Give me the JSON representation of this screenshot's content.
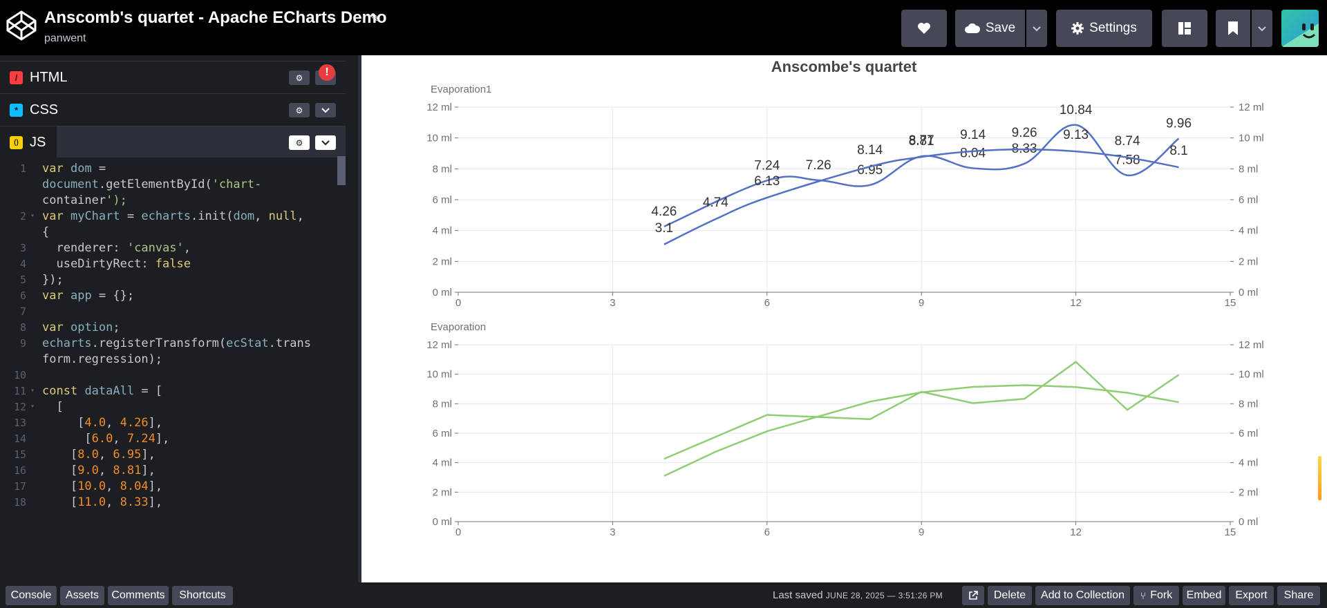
{
  "header": {
    "title": "Anscomb's quartet - Apache ECharts Demo",
    "author": "panwent",
    "save_label": "Save",
    "settings_label": "Settings"
  },
  "editor": {
    "panes": [
      {
        "label": "HTML",
        "icon_char": "/",
        "color": "#ff3c41"
      },
      {
        "label": "CSS",
        "icon_char": "*",
        "color": "#0ebeff"
      },
      {
        "label": "JS",
        "icon_char": "()",
        "color": "#fcd000"
      }
    ],
    "error_badge": "!",
    "code_lines": [
      {
        "num": "1",
        "fold": false,
        "text": "var dom ="
      },
      {
        "num": "",
        "fold": false,
        "text": "document.getElementById('chart-"
      },
      {
        "num": "",
        "fold": false,
        "text": "container');"
      },
      {
        "num": "2",
        "fold": true,
        "text": "var myChart = echarts.init(dom, null,"
      },
      {
        "num": "",
        "fold": false,
        "text": "{"
      },
      {
        "num": "3",
        "fold": false,
        "text": "  renderer: 'canvas',"
      },
      {
        "num": "4",
        "fold": false,
        "text": "  useDirtyRect: false"
      },
      {
        "num": "5",
        "fold": false,
        "text": "});"
      },
      {
        "num": "6",
        "fold": false,
        "text": "var app = {};"
      },
      {
        "num": "7",
        "fold": false,
        "text": ""
      },
      {
        "num": "8",
        "fold": false,
        "text": "var option;"
      },
      {
        "num": "9",
        "fold": false,
        "text": "echarts.registerTransform(ecStat.trans"
      },
      {
        "num": "",
        "fold": false,
        "text": "form.regression);"
      },
      {
        "num": "10",
        "fold": false,
        "text": ""
      },
      {
        "num": "11",
        "fold": true,
        "text": "const dataAll = ["
      },
      {
        "num": "12",
        "fold": true,
        "text": "  ["
      },
      {
        "num": "13",
        "fold": false,
        "text": "     [4.0, 4.26],"
      },
      {
        "num": "14",
        "fold": false,
        "text": "      [6.0, 7.24],"
      },
      {
        "num": "15",
        "fold": false,
        "text": "    [8.0, 6.95],"
      },
      {
        "num": "16",
        "fold": false,
        "text": "    [9.0, 8.81],"
      },
      {
        "num": "17",
        "fold": false,
        "text": "    [10.0, 8.04],"
      },
      {
        "num": "18",
        "fold": false,
        "text": "    [11.0, 8.33],"
      }
    ]
  },
  "footer": {
    "left_buttons": [
      "Console",
      "Assets",
      "Comments",
      "Shortcuts"
    ],
    "last_saved_prefix": "Last saved",
    "last_saved_value": "JUNE 28, 2025 — 3:51:26 PM",
    "right_buttons": [
      "Delete",
      "Add to Collection",
      "Fork",
      "Embed",
      "Export",
      "Share"
    ]
  },
  "chart_data": [
    {
      "type": "line",
      "title": "Anscombe's quartet",
      "y_name": "Evaporation1",
      "xlim": [
        0,
        15
      ],
      "x_ticks": [
        0,
        3,
        6,
        9,
        12,
        15
      ],
      "ylim": [
        0,
        12
      ],
      "y_ticks": [
        0,
        2,
        4,
        6,
        8,
        10,
        12
      ],
      "y_unit": "ml",
      "smooth": true,
      "color": "#5470c6",
      "show_labels": true,
      "series": [
        {
          "points": [
            [
              4,
              4.26
            ],
            [
              6,
              7.24
            ],
            [
              7,
              7.26
            ],
            [
              8,
              6.95
            ],
            [
              9,
              8.81
            ],
            [
              10,
              8.04
            ],
            [
              11,
              8.33
            ],
            [
              12,
              10.84
            ],
            [
              13,
              7.58
            ],
            [
              14,
              9.96
            ]
          ],
          "labels": [
            "4.26",
            "7.24",
            "7.26",
            "6.95",
            "8.81",
            "8.04",
            "8.33",
            "10.84",
            "7.58",
            "9.96"
          ]
        },
        {
          "points": [
            [
              4,
              3.1
            ],
            [
              5,
              4.74
            ],
            [
              6,
              6.13
            ],
            [
              8,
              8.14
            ],
            [
              9,
              8.77
            ],
            [
              10,
              9.14
            ],
            [
              11,
              9.26
            ],
            [
              12,
              9.13
            ],
            [
              13,
              8.74
            ],
            [
              14,
              8.1
            ]
          ],
          "labels": [
            "3.1",
            "4.74",
            "6.13",
            "8.14",
            "8.77",
            "9.14",
            "9.26",
            "9.13",
            "8.74",
            "8.1"
          ]
        }
      ]
    },
    {
      "type": "line",
      "y_name": "Evaporation",
      "xlim": [
        0,
        15
      ],
      "x_ticks": [
        0,
        3,
        6,
        9,
        12,
        15
      ],
      "ylim": [
        0,
        12
      ],
      "y_ticks": [
        0,
        2,
        4,
        6,
        8,
        10,
        12
      ],
      "y_unit": "ml",
      "smooth": false,
      "color": "#91cc75",
      "show_labels": false,
      "series": [
        {
          "points": [
            [
              4,
              4.26
            ],
            [
              6,
              7.24
            ],
            [
              8,
              6.95
            ],
            [
              9,
              8.81
            ],
            [
              10,
              8.04
            ],
            [
              11,
              8.33
            ],
            [
              12,
              10.84
            ],
            [
              13,
              7.58
            ],
            [
              14,
              9.96
            ]
          ]
        },
        {
          "points": [
            [
              4,
              3.1
            ],
            [
              5,
              4.74
            ],
            [
              6,
              6.13
            ],
            [
              8,
              8.14
            ],
            [
              9,
              8.77
            ],
            [
              10,
              9.14
            ],
            [
              11,
              9.26
            ],
            [
              12,
              9.13
            ],
            [
              13,
              8.74
            ],
            [
              14,
              8.1
            ]
          ]
        }
      ]
    }
  ]
}
